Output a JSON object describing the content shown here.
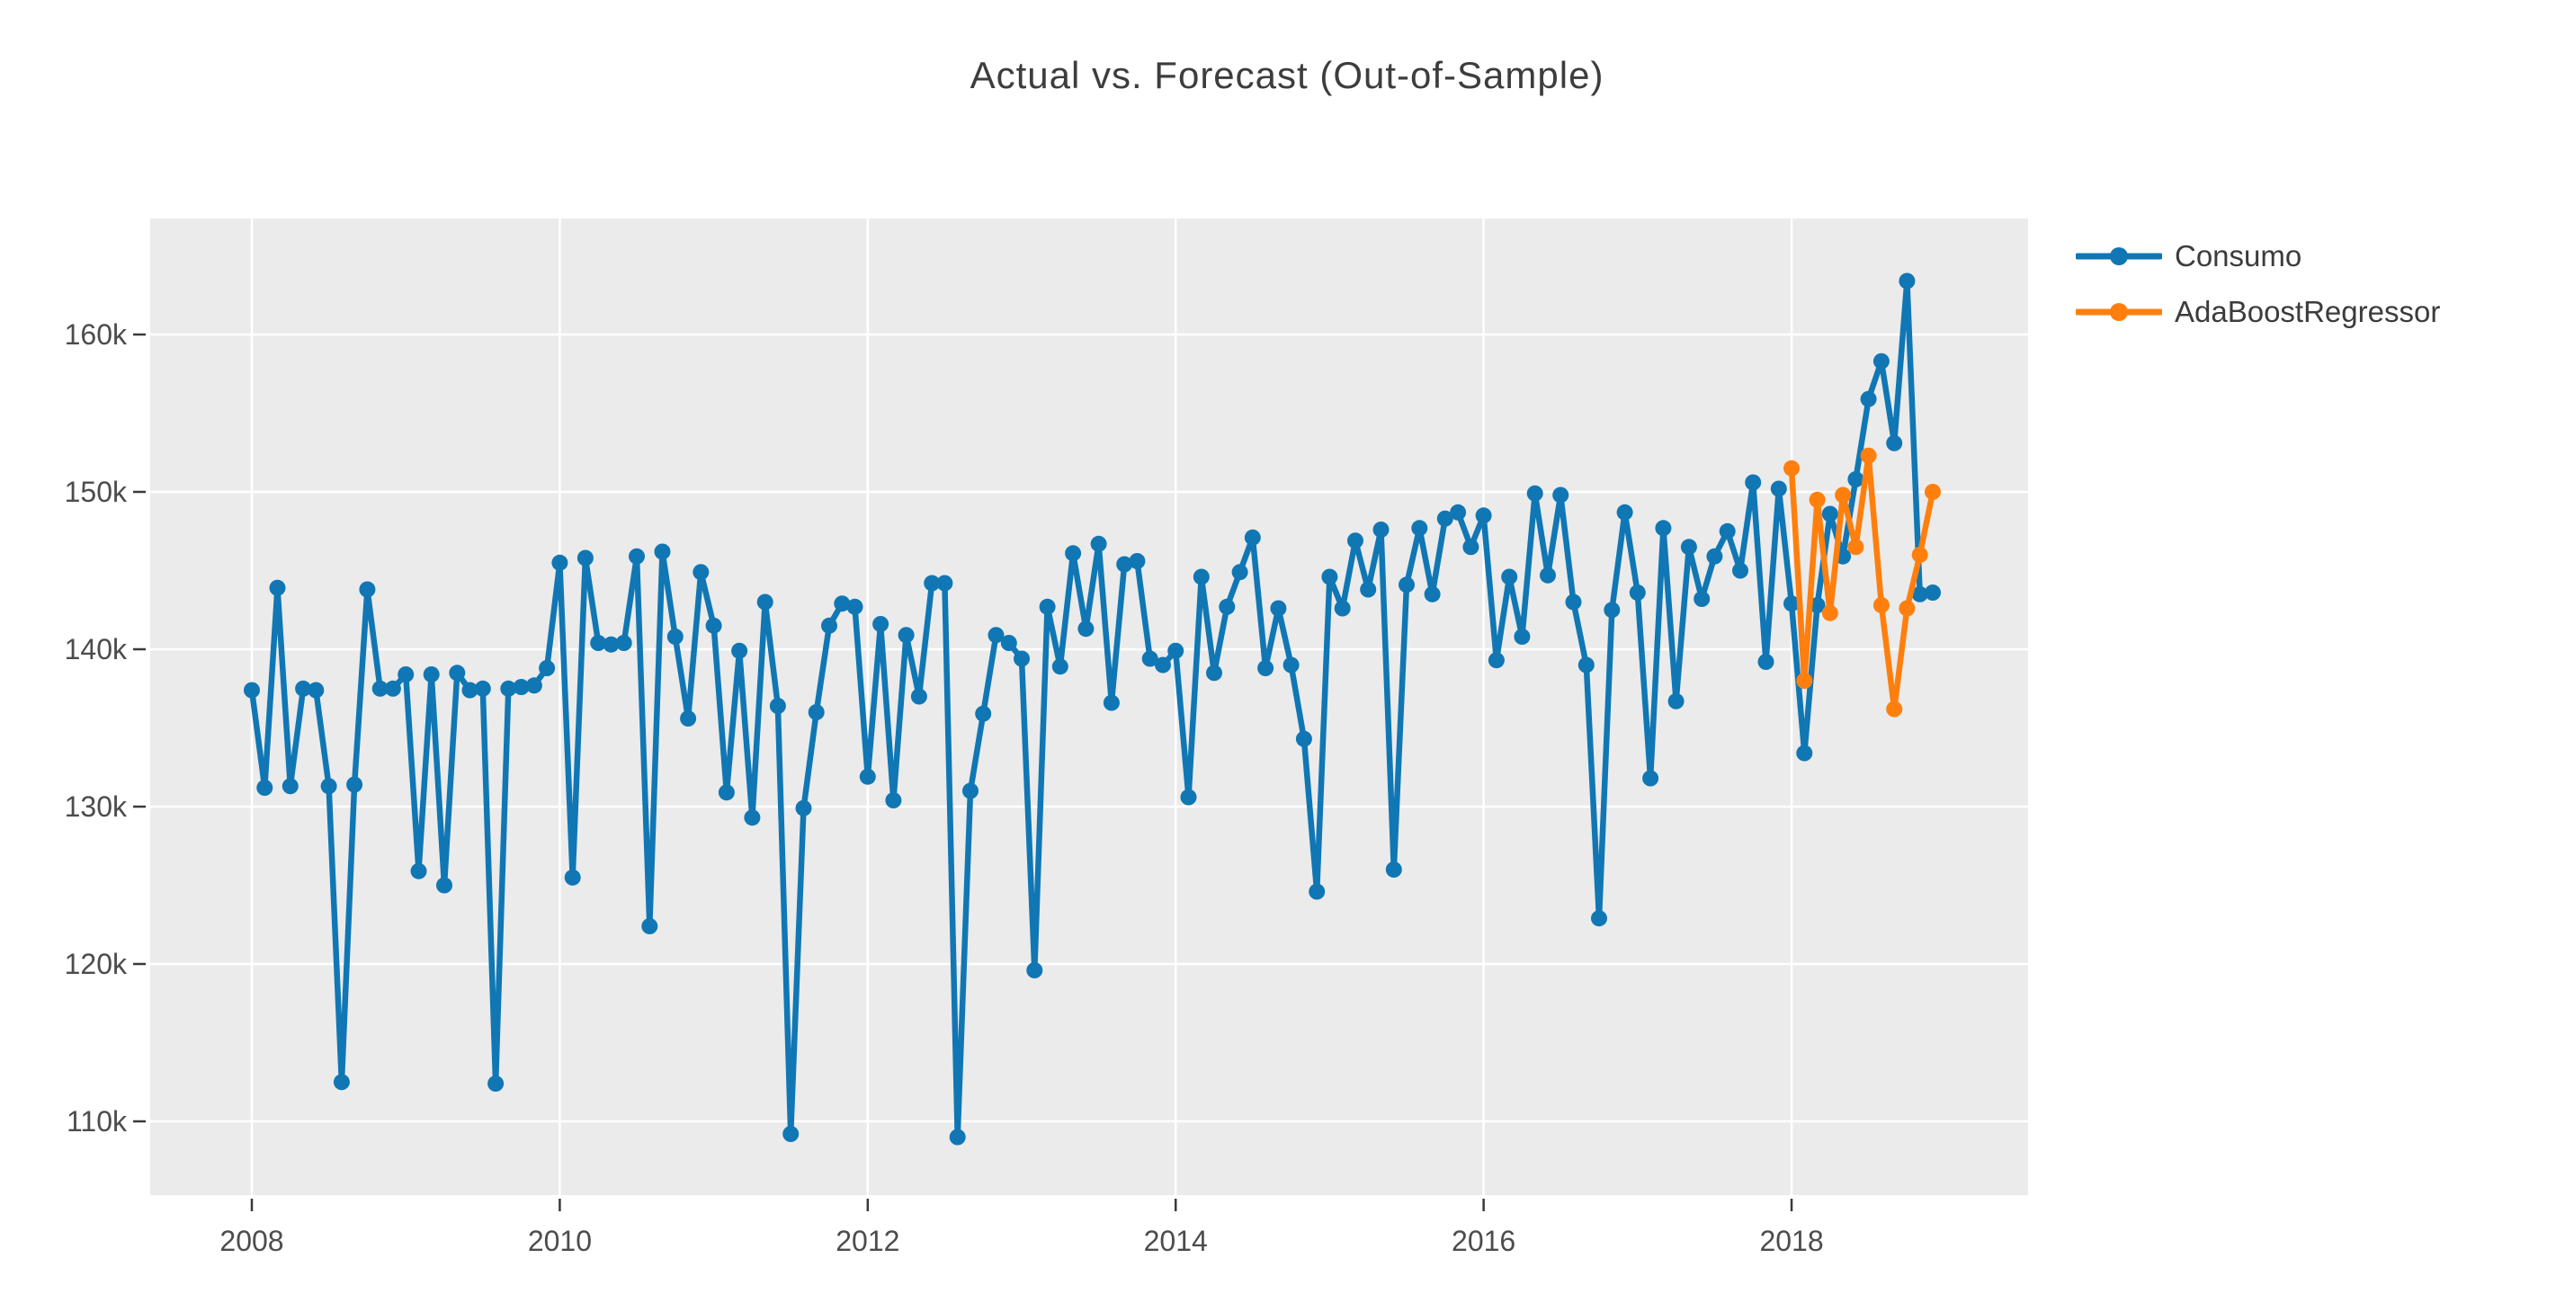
{
  "title": "Actual vs. Forecast (Out-of-Sample)",
  "colors": {
    "actual_series": "#1077b4",
    "forecast_series": "#ff7f0e",
    "plot_background": "#ebebeb",
    "gridline": "#ffffff",
    "tick_mark": "#3a3a3a",
    "tick_text": "#4c4c4c",
    "title_text": "#3d3d3d"
  },
  "legend": {
    "position": "outside-right-top",
    "items": [
      {
        "label": "Consumo",
        "color_key": "actual_series"
      },
      {
        "label": "AdaBoostRegressor",
        "color_key": "forecast_series"
      }
    ]
  },
  "chart_data": {
    "type": "line",
    "title": "Actual vs. Forecast (Out-of-Sample)",
    "xlabel": "",
    "ylabel": "",
    "grid": true,
    "x_unit": "month",
    "x_start": "2008-01",
    "x_tick_years": [
      2008,
      2010,
      2012,
      2014,
      2016,
      2018
    ],
    "y_ticks": [
      {
        "value": 110000,
        "label": "110k"
      },
      {
        "value": 120000,
        "label": "120k"
      },
      {
        "value": 130000,
        "label": "130k"
      },
      {
        "value": 140000,
        "label": "140k"
      },
      {
        "value": 150000,
        "label": "150k"
      },
      {
        "value": 160000,
        "label": "160k"
      }
    ],
    "ylim": [
      105300,
      167300
    ],
    "values_unit": "thousands (k)",
    "series": [
      {
        "name": "Consumo",
        "color_key": "actual_series",
        "marker": "circle",
        "start_month_index": 0,
        "values_thousands": [
          137.4,
          131.2,
          143.9,
          131.3,
          137.5,
          137.4,
          131.3,
          112.5,
          131.4,
          143.8,
          137.5,
          137.5,
          138.4,
          125.9,
          138.4,
          125.0,
          138.5,
          137.4,
          137.5,
          112.4,
          137.5,
          137.6,
          137.7,
          138.8,
          145.5,
          125.5,
          145.8,
          140.4,
          140.3,
          140.4,
          145.9,
          122.4,
          146.2,
          140.8,
          135.6,
          144.9,
          141.5,
          130.9,
          139.9,
          129.3,
          143.0,
          136.4,
          109.2,
          129.9,
          136.0,
          141.5,
          142.9,
          142.7,
          131.9,
          141.6,
          130.4,
          140.9,
          137.0,
          144.2,
          144.2,
          109.0,
          131.0,
          135.9,
          140.9,
          140.4,
          139.4,
          119.6,
          142.7,
          138.9,
          146.1,
          141.3,
          146.7,
          136.6,
          145.4,
          145.6,
          139.4,
          139.0,
          139.9,
          130.6,
          144.6,
          138.5,
          142.7,
          144.9,
          147.1,
          138.8,
          142.6,
          139.0,
          134.3,
          124.6,
          144.6,
          142.6,
          146.9,
          143.8,
          147.6,
          126.0,
          144.1,
          147.7,
          143.5,
          148.3,
          148.7,
          146.5,
          148.5,
          139.3,
          144.6,
          140.8,
          149.9,
          144.7,
          149.8,
          143.0,
          139.0,
          122.9,
          142.5,
          148.7,
          143.6,
          131.8,
          147.7,
          136.7,
          146.5,
          143.2,
          145.9,
          147.5,
          145.0,
          150.6,
          139.2,
          150.2,
          142.9,
          133.4,
          142.8,
          148.6,
          145.9,
          150.8,
          155.9,
          158.3,
          153.1,
          163.4,
          143.5,
          143.6
        ]
      },
      {
        "name": "AdaBoostRegressor",
        "color_key": "forecast_series",
        "marker": "circle",
        "start_month_index": 120,
        "values_thousands": [
          151.5,
          138.0,
          149.5,
          142.3,
          149.8,
          146.5,
          152.3,
          142.8,
          136.2,
          142.6,
          146.0,
          150.0
        ]
      }
    ]
  }
}
